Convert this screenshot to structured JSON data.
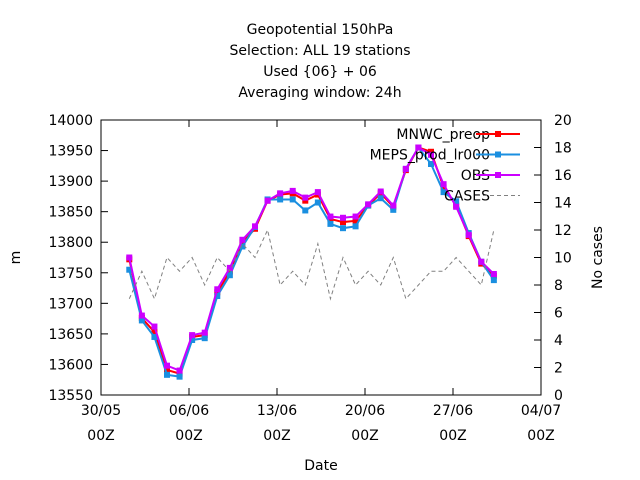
{
  "chart_data": {
    "type": "line",
    "title_lines": [
      "Geopotential 150hPa",
      "Selection: ALL      19 stations",
      "Used {06} + 06",
      "Averaging window: 24h"
    ],
    "xlabel": "Date",
    "ylabel": "m",
    "y2label": "No cases",
    "ylim": [
      13550,
      14000
    ],
    "y_ticks": [
      "13550",
      "13600",
      "13650",
      "13700",
      "13750",
      "13800",
      "13850",
      "13900",
      "13950",
      "14000"
    ],
    "y2lim": [
      0,
      20
    ],
    "y2_ticks": [
      "0",
      "2",
      "4",
      "6",
      "8",
      "10",
      "12",
      "14",
      "16",
      "18",
      "20"
    ],
    "xlim_days": [
      0,
      35
    ],
    "x_ticks": [
      {
        "day": 0,
        "date": "30/05",
        "hour": "00Z"
      },
      {
        "day": 7,
        "date": "06/06",
        "hour": "00Z"
      },
      {
        "day": 14,
        "date": "13/06",
        "hour": "00Z"
      },
      {
        "day": 21,
        "date": "20/06",
        "hour": "00Z"
      },
      {
        "day": 28,
        "date": "27/06",
        "hour": "00Z"
      },
      {
        "day": 35,
        "date": "04/07",
        "hour": "00Z"
      }
    ],
    "legend_position": "top-right",
    "grid": false,
    "series": [
      {
        "name": "MNWC_preop",
        "color": "#ff0000",
        "marker": "square",
        "x": [
          2.25,
          3.25,
          4.25,
          5.25,
          6.25,
          7.25,
          8.25,
          9.25,
          10.25,
          11.25,
          12.25,
          13.25,
          14.25,
          15.25,
          16.25,
          17.25,
          18.25,
          19.25,
          20.25,
          21.25,
          22.25,
          23.25,
          24.25,
          25.25,
          26.25,
          27.25,
          28.25,
          29.25,
          30.25,
          31.25,
          32.25
        ],
        "values": [
          13772,
          13676,
          13653,
          13591,
          13585,
          13645,
          13648,
          13718,
          13752,
          13800,
          13822,
          13868,
          13878,
          13880,
          13868,
          13878,
          13838,
          13833,
          13835,
          13860,
          13880,
          13858,
          13918,
          13955,
          13948,
          13890,
          13860,
          13810,
          13765,
          13745,
          null
        ]
      },
      {
        "name": "MEPS_prod_lr000",
        "color": "#1a8fe0",
        "marker": "square",
        "x": [
          2.25,
          3.25,
          4.25,
          5.25,
          6.25,
          7.25,
          8.25,
          9.25,
          10.25,
          11.25,
          12.25,
          13.25,
          14.25,
          15.25,
          16.25,
          17.25,
          18.25,
          19.25,
          20.25,
          21.25,
          22.25,
          23.25,
          24.25,
          25.25,
          26.25,
          27.25,
          28.25,
          29.25,
          30.25,
          31.25,
          32.25
        ],
        "values": [
          13755,
          13672,
          13645,
          13583,
          13580,
          13640,
          13643,
          13712,
          13746,
          13793,
          13825,
          13870,
          13870,
          13870,
          13852,
          13865,
          13830,
          13823,
          13826,
          13860,
          13872,
          13853,
          13920,
          13955,
          13928,
          13882,
          13867,
          13815,
          13768,
          13738,
          null
        ]
      },
      {
        "name": "OBS",
        "color": "#cc00ff",
        "marker": "square",
        "x": [
          2.25,
          3.25,
          4.25,
          5.25,
          6.25,
          7.25,
          8.25,
          9.25,
          10.25,
          11.25,
          12.25,
          13.25,
          14.25,
          15.25,
          16.25,
          17.25,
          18.25,
          19.25,
          20.25,
          21.25,
          22.25,
          23.25,
          24.25,
          25.25,
          26.25,
          27.25,
          28.25,
          29.25,
          30.25,
          31.25,
          32.25
        ],
        "values": [
          13775,
          13680,
          13662,
          13598,
          13590,
          13648,
          13652,
          13723,
          13758,
          13804,
          13826,
          13868,
          13880,
          13884,
          13873,
          13882,
          13842,
          13840,
          13842,
          13862,
          13883,
          13860,
          13920,
          13955,
          13943,
          13895,
          13858,
          13812,
          13768,
          13748,
          null
        ]
      },
      {
        "name": "CASES",
        "color": "#808080",
        "axis": "y2",
        "x": [
          2.25,
          3.25,
          4.25,
          5.25,
          6.25,
          7.25,
          8.25,
          9.25,
          10.25,
          11.25,
          12.25,
          13.25,
          14.25,
          15.25,
          16.25,
          17.25,
          18.25,
          19.25,
          20.25,
          21.25,
          22.25,
          23.25,
          24.25,
          25.25,
          26.25,
          27.25,
          28.25,
          29.25,
          30.25,
          31.25,
          32.25
        ],
        "values": [
          7,
          9,
          7,
          10,
          9,
          10,
          8,
          10,
          9,
          11,
          10,
          12,
          8,
          9,
          8,
          11,
          7,
          10,
          8,
          9,
          8,
          10,
          7,
          8,
          9,
          9,
          10,
          9,
          8,
          12,
          null
        ]
      }
    ]
  }
}
